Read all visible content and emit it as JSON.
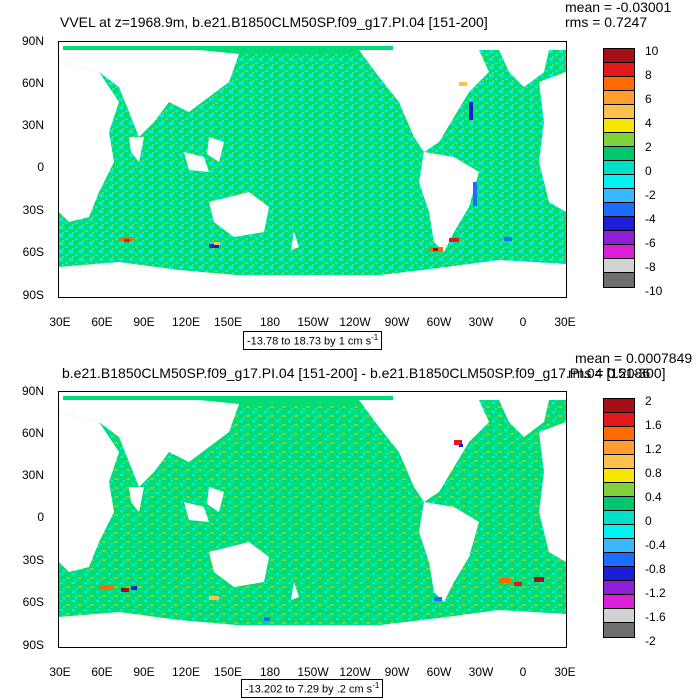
{
  "panels": [
    {
      "title": "VVEL at z=1968.9m, b.e21.B1850CLM50SP.f09_g17.PI.04 [151-200]",
      "mean": "mean = -0.03001",
      "rms": "rms = 0.7247",
      "range_label": "-13.78 to 18.73 by 1 cm s",
      "range_unit_sup": "-1",
      "colorbar_labels": [
        "10",
        "8",
        "6",
        "4",
        "2",
        "0",
        "-2",
        "-4",
        "-6",
        "-8",
        "-10"
      ],
      "colorbar_colors": [
        "#a50f15",
        "#e4181c",
        "#ff6a00",
        "#ff9d2e",
        "#ffc04d",
        "#f6e600",
        "#7fd23a",
        "#00c76e",
        "#00e0c8",
        "#00f2f2",
        "#3ab8ff",
        "#1c6cff",
        "#1d1dd8",
        "#8f1fd6",
        "#dd1fd9",
        "#d2d2d2",
        "#6e6e6e"
      ]
    },
    {
      "title": "b.e21.B1850CLM50SP.f09_g17.PI.04 [151-200] - b.e21.B1850CLM50SP.f09_g17.PI.04 [151-300]",
      "mean": "mean = 0.0007849",
      "rms": "rms = 0.2086",
      "range_label": "-13.202 to 7.29 by .2 cm s",
      "range_unit_sup": "-1",
      "colorbar_labels": [
        "2",
        "1.6",
        "1.2",
        "0.8",
        "0.4",
        "0",
        "-0.4",
        "-0.8",
        "-1.2",
        "-1.6",
        "-2"
      ],
      "colorbar_colors": [
        "#a50f15",
        "#e4181c",
        "#ff6a00",
        "#ff9d2e",
        "#ffc04d",
        "#f6e600",
        "#7fd23a",
        "#00c76e",
        "#00e0c8",
        "#00f2f2",
        "#3ab8ff",
        "#1c6cff",
        "#1d1dd8",
        "#8f1fd6",
        "#dd1fd9",
        "#d2d2d2",
        "#6e6e6e"
      ]
    }
  ],
  "lat_labels": [
    "90N",
    "60N",
    "30N",
    "0",
    "30S",
    "60S",
    "90S"
  ],
  "lon_labels": [
    "30E",
    "60E",
    "90E",
    "120E",
    "150E",
    "180",
    "150W",
    "120W",
    "90W",
    "60W",
    "30W",
    "0",
    "30E"
  ],
  "colors": {
    "ocean_main": "#00dd77",
    "ocean_alt": "#00f0e0",
    "land": "#ffffff"
  }
}
